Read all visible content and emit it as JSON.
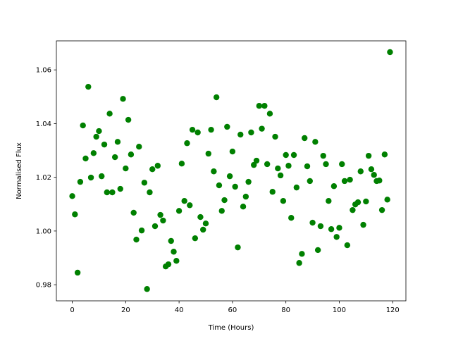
{
  "chart_data": {
    "type": "scatter",
    "xlabel": "Time (Hours)",
    "ylabel": "Normalised Flux",
    "color": "#008000",
    "x": [
      0,
      1,
      2,
      3,
      4,
      5,
      6,
      7,
      8,
      9,
      10,
      11,
      12,
      13,
      14,
      15,
      16,
      17,
      18,
      19,
      20,
      21,
      22,
      23,
      24,
      25,
      26,
      27,
      28,
      29,
      30,
      31,
      32,
      33,
      34,
      35,
      36,
      37,
      38,
      39,
      40,
      41,
      42,
      43,
      44,
      45,
      46,
      47,
      48,
      49,
      50,
      51,
      52,
      53,
      54,
      55,
      56,
      57,
      58,
      59,
      60,
      61,
      62,
      63,
      64,
      65,
      66,
      67,
      68,
      69,
      70,
      71,
      72,
      73,
      74,
      75,
      76,
      77,
      78,
      79,
      80,
      81,
      82,
      83,
      84,
      85,
      86,
      87,
      88,
      89,
      90,
      91,
      92,
      93,
      94,
      95,
      96,
      97,
      98,
      99,
      100,
      101,
      102,
      103,
      104,
      105,
      106,
      107,
      108,
      109,
      110,
      111,
      112,
      113,
      114,
      115,
      116,
      117,
      118,
      119
    ],
    "values": [
      1.013,
      1.0062,
      0.9845,
      1.0183,
      1.0393,
      1.027,
      1.0537,
      1.0199,
      1.029,
      1.0351,
      1.0372,
      1.0204,
      1.0322,
      1.0144,
      1.0437,
      1.0144,
      1.0275,
      1.0332,
      1.0157,
      1.0492,
      1.0233,
      1.0414,
      1.0285,
      1.0068,
      0.9968,
      1.0314,
      1.0002,
      1.018,
      0.9784,
      1.0144,
      1.023,
      1.0018,
      1.0243,
      1.006,
      1.0039,
      0.9868,
      0.9876,
      0.9963,
      0.9923,
      0.9889,
      1.0075,
      1.0251,
      1.0112,
      1.0327,
      1.0096,
      1.0377,
      0.9973,
      1.0367,
      1.0052,
      1.0005,
      1.0028,
      1.0288,
      1.0377,
      1.0222,
      1.0498,
      1.017,
      1.0075,
      1.0115,
      1.0388,
      1.0204,
      1.0296,
      1.0165,
      0.9939,
      1.0359,
      1.0091,
      1.0128,
      1.0183,
      1.0367,
      1.0246,
      1.0262,
      1.0466,
      1.0381,
      1.0466,
      1.0249,
      1.0437,
      1.0146,
      1.0351,
      1.0233,
      1.0207,
      1.0112,
      1.0283,
      1.0243,
      1.0049,
      1.0283,
      1.0162,
      0.9881,
      0.9915,
      1.0346,
      1.0241,
      1.0186,
      1.0031,
      1.0332,
      0.9929,
      1.0018,
      1.028,
      1.0249,
      1.0112,
      1.0007,
      1.0167,
      0.9978,
      1.0012,
      1.0249,
      1.0186,
      0.9947,
      1.0191,
      1.0078,
      1.0099,
      1.0107,
      1.0222,
      1.0023,
      1.011,
      1.028,
      1.023,
      1.0209,
      1.0186,
      1.0188,
      1.0078,
      1.0285,
      1.0117,
      1.0666
    ],
    "xlim": [
      -5.95,
      124.95
    ],
    "xticks": [
      0,
      20,
      40,
      60,
      80,
      100,
      120
    ],
    "ylim": [
      0.974,
      1.0708
    ],
    "yticks": [
      0.98,
      {
        "value": 1.0,
        "label": "1.00"
      },
      1.02,
      1.04,
      1.06
    ]
  }
}
